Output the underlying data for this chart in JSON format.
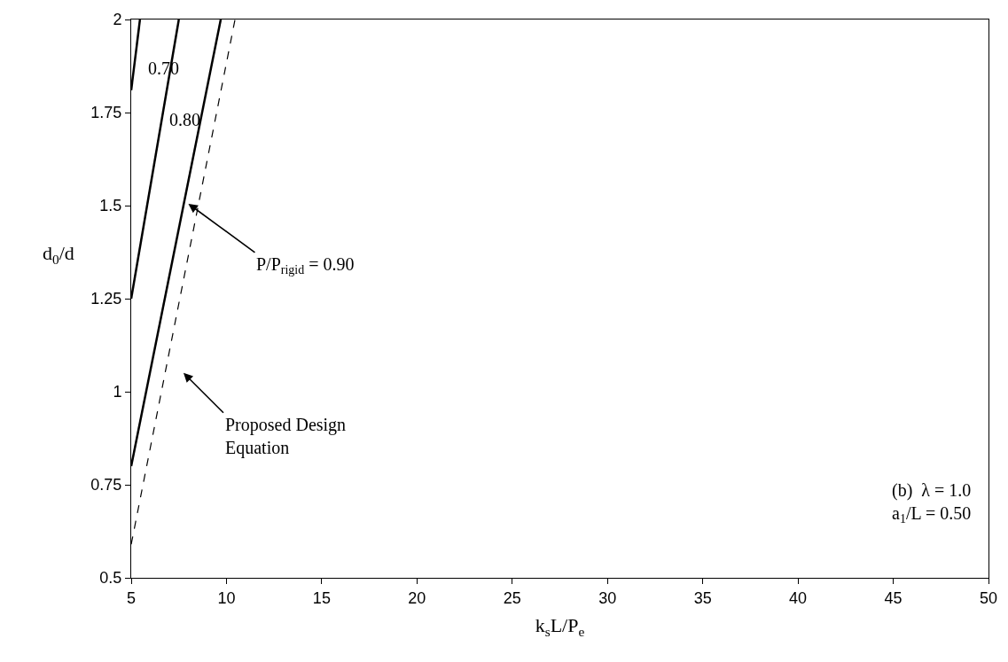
{
  "chart_data": {
    "type": "line",
    "xlabel": "k$_{s}$L/P$_{e}$",
    "ylabel": "d$_{0}$/d",
    "xlim": [
      5,
      50
    ],
    "xticks": [
      5,
      10,
      15,
      20,
      25,
      30,
      35,
      40,
      45,
      50
    ],
    "ylim": [
      0.5,
      2
    ],
    "yticks": [
      0.5,
      {
        "value": 0.75,
        "label": "0.75"
      },
      1,
      1.25,
      1.5,
      1.75,
      2
    ],
    "marker": "none",
    "series": [
      {
        "color": "#000000",
        "x": [
          5,
          5.46
        ],
        "values": [
          1.81,
          2
        ],
        "line_style": "solid"
      },
      {
        "color": "#000000",
        "x": [
          5,
          7.5
        ],
        "values": [
          1.25,
          2
        ],
        "line_style": "solid"
      },
      {
        "color": "#000000",
        "x": [
          5,
          9.7
        ],
        "values": [
          0.8,
          2
        ],
        "line_style": "solid"
      },
      {
        "color": "#000000",
        "x": [
          5,
          10.45
        ],
        "values": [
          0.59,
          2
        ],
        "line_style": "dashed"
      }
    ],
    "annotations": [
      "0.70",
      "0.80",
      {
        "text": "P/P$_{rigid}$ = 0.90",
        "x": 8.0,
        "y": 1.505
      },
      "Proposed Design\nEquation",
      "(b)  λ = 1.0\na$_{1}$/L = 0.50"
    ]
  }
}
